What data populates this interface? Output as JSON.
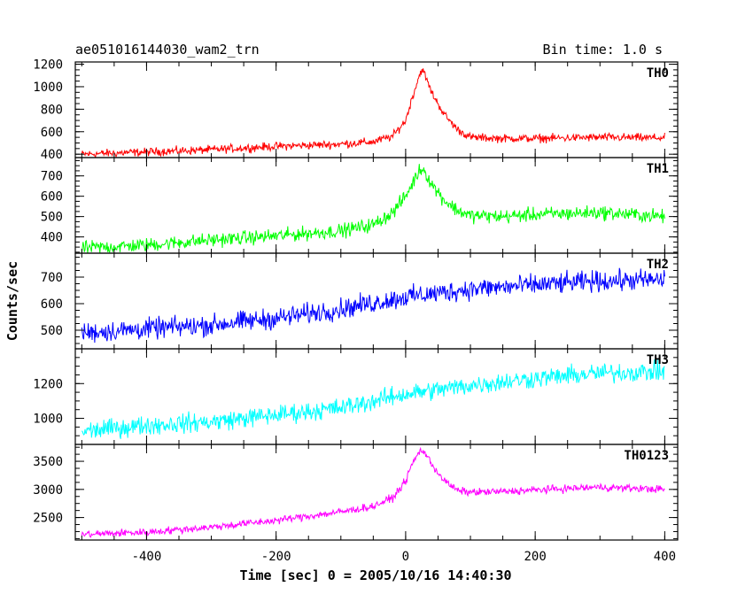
{
  "header": {
    "title": "ae051016144030_wam2_trn",
    "bin_time": "Bin time: 1.0 s"
  },
  "axes": {
    "xlabel": "Time [sec] 0 = 2005/10/16 14:40:30",
    "ylabel": "Counts/sec"
  },
  "chart_data": {
    "type": "line",
    "title": "ae051016144030_wam2_trn",
    "subtitle": "Bin time: 1.0 s",
    "xlabel": "Time [sec] 0 = 2005/10/16 14:40:30",
    "ylabel": "Counts/sec",
    "xlim": [
      -510,
      420
    ],
    "x_ticks": [
      -400,
      -200,
      0,
      200,
      400
    ],
    "series": [
      {
        "name": "TH0",
        "color": "#ff0000",
        "ylim": [
          370,
          1220
        ],
        "y_ticks": [
          400,
          600,
          800,
          1000,
          1200
        ],
        "x": [
          -500,
          -400,
          -300,
          -200,
          -100,
          -50,
          -20,
          0,
          10,
          20,
          25,
          30,
          40,
          60,
          80,
          100,
          150,
          200,
          300,
          400
        ],
        "y": [
          400,
          420,
          440,
          470,
          490,
          510,
          560,
          700,
          900,
          1080,
          1160,
          1100,
          950,
          750,
          620,
          550,
          540,
          540,
          550,
          545
        ],
        "noise": 30
      },
      {
        "name": "TH1",
        "color": "#00ff00",
        "ylim": [
          320,
          790
        ],
        "y_ticks": [
          400,
          500,
          600,
          700
        ],
        "x": [
          -500,
          -400,
          -300,
          -200,
          -100,
          -50,
          -20,
          0,
          10,
          20,
          25,
          30,
          40,
          60,
          80,
          100,
          150,
          200,
          300,
          400
        ],
        "y": [
          345,
          360,
          385,
          405,
          430,
          460,
          520,
          600,
          660,
          720,
          740,
          720,
          660,
          580,
          530,
          505,
          500,
          510,
          520,
          500
        ],
        "noise": 28
      },
      {
        "name": "TH2",
        "color": "#0000ff",
        "ylim": [
          430,
          790
        ],
        "y_ticks": [
          500,
          600,
          700
        ],
        "x": [
          -500,
          -400,
          -300,
          -200,
          -100,
          0,
          100,
          200,
          300,
          400
        ],
        "y": [
          490,
          505,
          520,
          545,
          580,
          625,
          655,
          670,
          685,
          690
        ],
        "noise": 32
      },
      {
        "name": "TH3",
        "color": "#00ffff",
        "ylim": [
          850,
          1400
        ],
        "y_ticks": [
          1000,
          1200
        ],
        "x": [
          -500,
          -400,
          -300,
          -200,
          -100,
          0,
          100,
          200,
          300,
          400
        ],
        "y": [
          925,
          960,
          980,
          1020,
          1060,
          1140,
          1190,
          1230,
          1260,
          1270
        ],
        "noise": 45
      },
      {
        "name": "TH0123",
        "color": "#ff00ff",
        "ylim": [
          2100,
          3800
        ],
        "y_ticks": [
          2500,
          3000,
          3500
        ],
        "x": [
          -500,
          -400,
          -300,
          -200,
          -100,
          -50,
          -20,
          0,
          10,
          20,
          25,
          30,
          40,
          60,
          80,
          100,
          150,
          200,
          300,
          400
        ],
        "y": [
          2200,
          2240,
          2330,
          2450,
          2600,
          2700,
          2850,
          3150,
          3450,
          3650,
          3700,
          3650,
          3450,
          3150,
          2980,
          2950,
          2960,
          2990,
          3040,
          3000
        ],
        "noise": 55
      }
    ]
  }
}
